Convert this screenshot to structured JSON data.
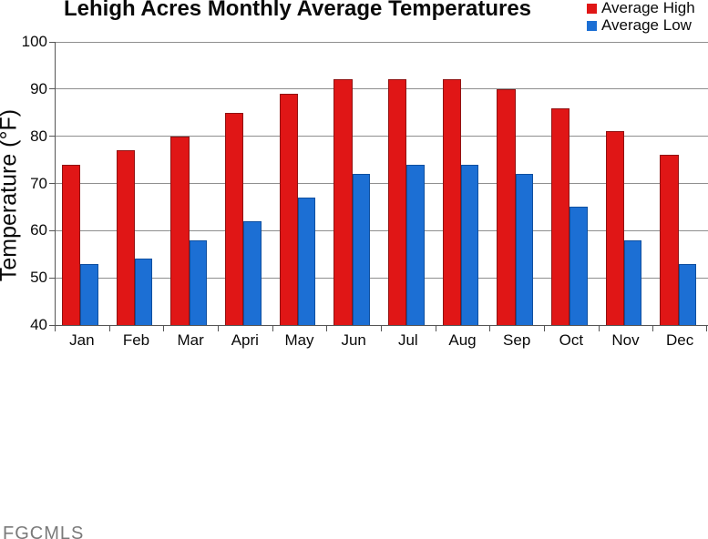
{
  "title": "Lehigh Acres Monthly Average Temperatures",
  "watermark": "FGCMLS",
  "legend": [
    {
      "label": "Average High",
      "color": "#e01616"
    },
    {
      "label": "Average Low",
      "color": "#1c6fd4"
    }
  ],
  "colors": {
    "high_fill": "#e01616",
    "high_border": "#901212",
    "low_fill": "#1c6fd4",
    "low_border": "#0f4f9f",
    "gridline": "#8f8f8f",
    "axis": "#555555"
  },
  "chart_data": {
    "type": "bar",
    "title": "Lehigh Acres Monthly Average Temperatures",
    "categories": [
      "Jan",
      "Feb",
      "Mar",
      "Apri",
      "May",
      "Jun",
      "Jul",
      "Aug",
      "Sep",
      "Oct",
      "Nov",
      "Dec"
    ],
    "series": [
      {
        "name": "Average High",
        "color": "#e01616",
        "border": "#901212",
        "values": [
          74,
          77,
          80,
          85,
          89,
          92,
          92,
          92,
          90,
          86,
          81,
          76
        ]
      },
      {
        "name": "Average Low",
        "color": "#1c6fd4",
        "border": "#0f4f9f",
        "values": [
          53,
          54,
          58,
          62,
          67,
          72,
          74,
          74,
          72,
          65,
          58,
          53
        ]
      }
    ],
    "xlabel": "",
    "ylabel": "Temperature (°F)",
    "ylim": [
      40,
      100
    ],
    "ytick_step": 10,
    "yticks": [
      40,
      50,
      60,
      70,
      80,
      90,
      100
    ],
    "grid": true,
    "legend_position": "top-right"
  }
}
